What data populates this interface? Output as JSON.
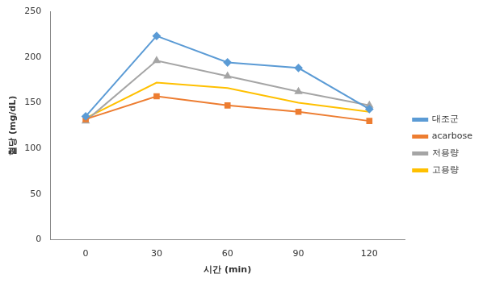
{
  "chart_data": {
    "type": "line",
    "x_label": "시간 (min)",
    "y_label": "혈당 (mg/dL)",
    "categories": [
      "0",
      "30",
      "60",
      "90",
      "120"
    ],
    "series": [
      {
        "name": "대조군",
        "color": "#5b9bd5",
        "marker": "diamond",
        "values": [
          135,
          223,
          194,
          188,
          143
        ]
      },
      {
        "name": "acarbose",
        "color": "#ed7d31",
        "marker": "square",
        "values": [
          132,
          157,
          147,
          140,
          130
        ]
      },
      {
        "name": "저용량",
        "color": "#a5a5a5",
        "marker": "triangle",
        "values": [
          130,
          196,
          179,
          162,
          147
        ]
      },
      {
        "name": "고용량",
        "color": "#ffc000",
        "marker": "none",
        "values": [
          133,
          172,
          166,
          150,
          140
        ]
      }
    ],
    "ylim": [
      0,
      250
    ],
    "yticks": [
      0,
      50,
      100,
      150,
      200,
      250
    ],
    "grid": false,
    "legend": "right"
  }
}
